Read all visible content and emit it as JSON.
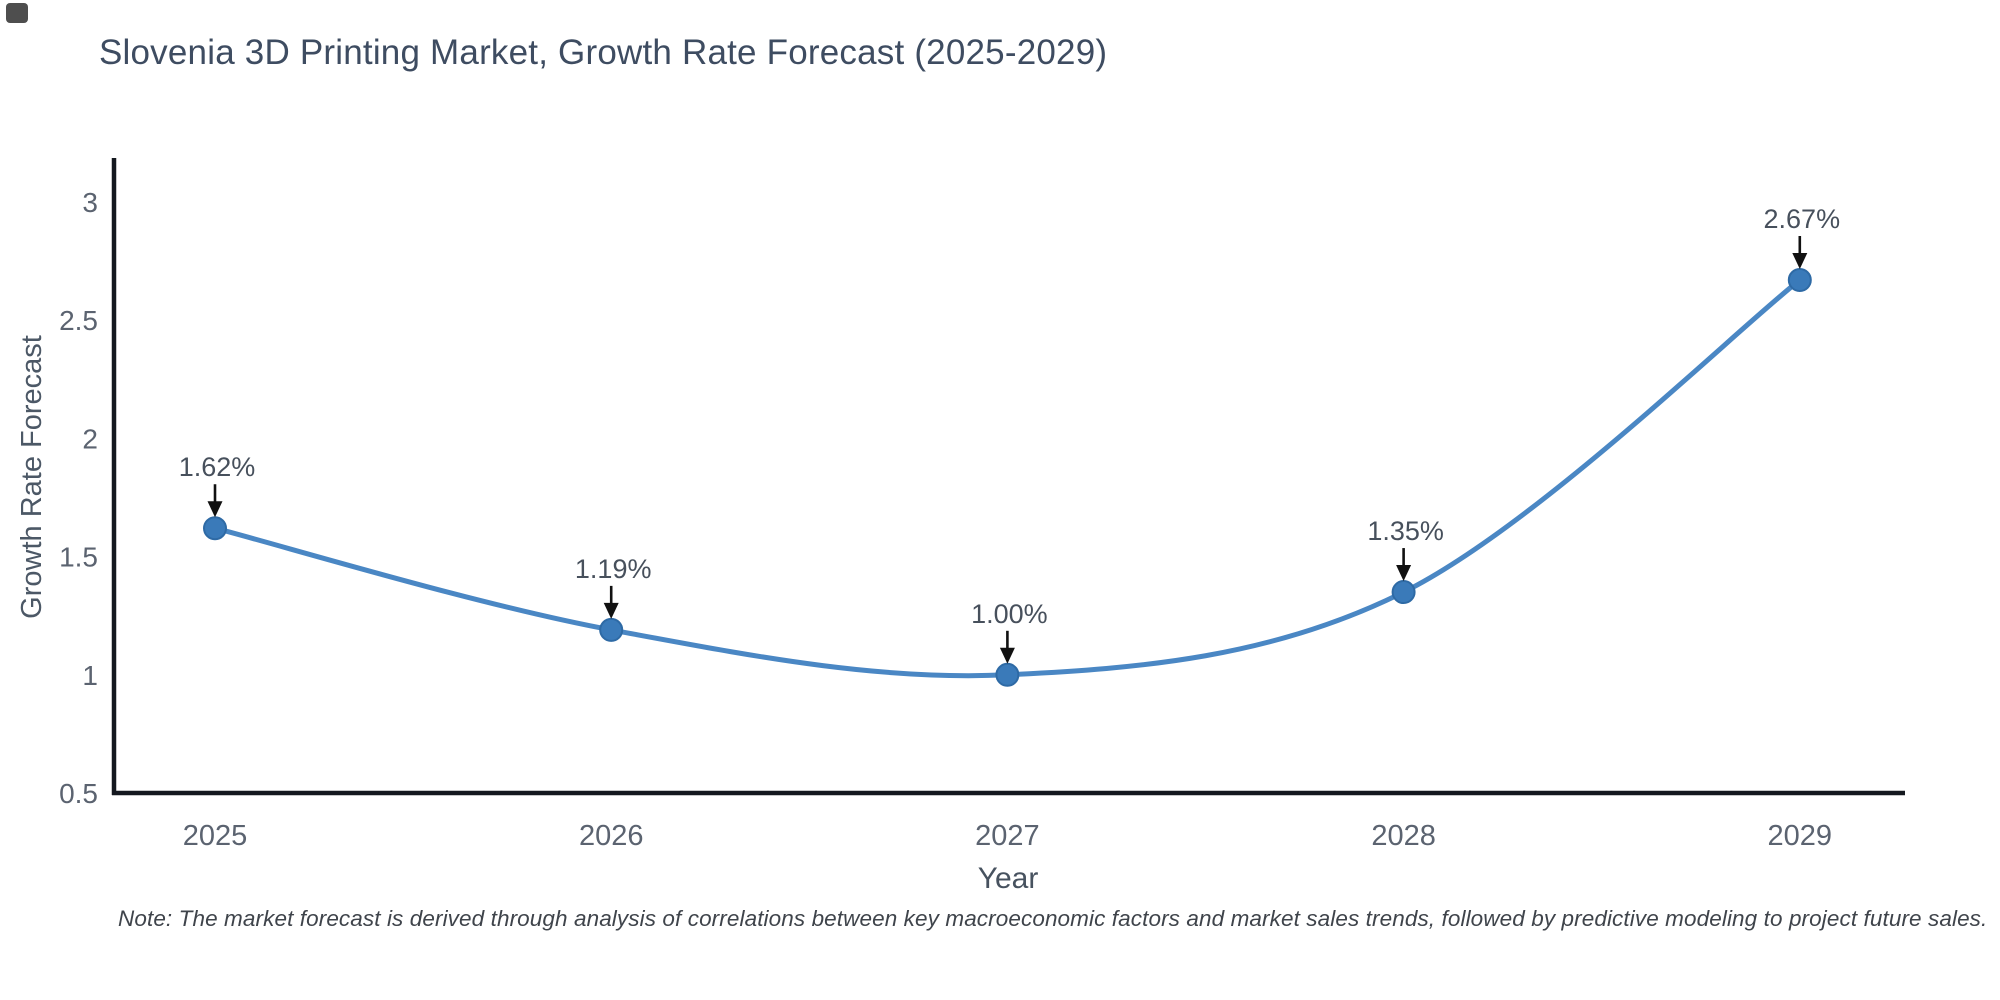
{
  "chart_data": {
    "type": "line",
    "line_shape": "spline",
    "title": "Slovenia 3D Printing Market, Growth Rate Forecast (2025-2029)",
    "xlabel": "Year",
    "ylabel": "Growth Rate Forecast",
    "note": "Note: The market forecast is derived through analysis of correlations between key macroeconomic factors and market sales trends, followed by predictive modeling to project future sales.",
    "categories": [
      2025,
      2026,
      2027,
      2028,
      2029
    ],
    "values": [
      1.62,
      1.19,
      1.0,
      1.35,
      2.67
    ],
    "point_labels": [
      "1.62%",
      "1.19%",
      "1.00%",
      "1.35%",
      "2.67%"
    ],
    "yticks": [
      0.5,
      1,
      1.5,
      2,
      2.5,
      3
    ],
    "ylim": [
      0.5,
      3.2
    ],
    "xlim": [
      2024.74,
      2029.27
    ],
    "grid": "off",
    "legend": "none",
    "annotations_have_arrows": true,
    "colors": {
      "line": "#4a87c4",
      "marker_fill": "#3a7ab9",
      "marker_edge": "#2e6aa5",
      "axis_line": "#14181f",
      "title_text": "#3e4c61",
      "tick_text": "#5b6370",
      "annotation_text": "#47505c",
      "arrow": "#111111",
      "note_text": "#3f444b"
    }
  }
}
